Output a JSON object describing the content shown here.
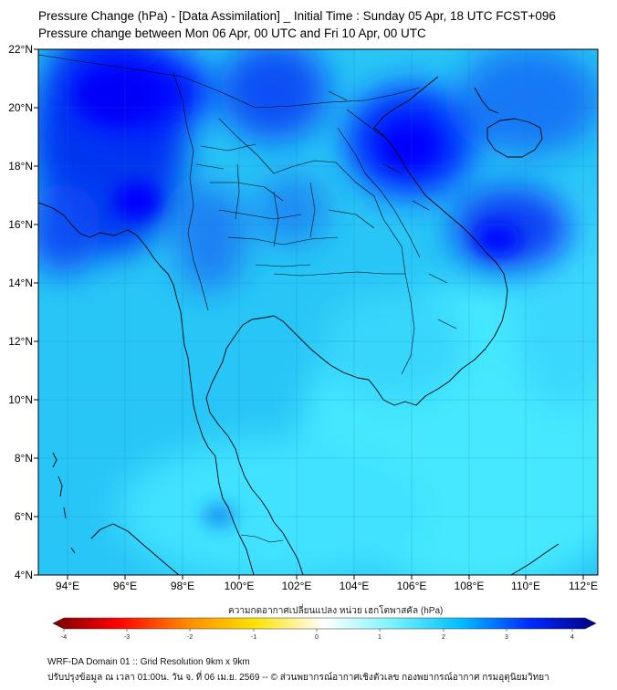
{
  "header": {
    "title_line1": "Pressure Change (hPa) - [Data Assimilation] _ Initial Time : Sunday 05 Apr, 18 UTC FCST+096",
    "title_line2": "Pressure change between Mon 06 Apr, 00 UTC and Fri 10 Apr, 00 UTC"
  },
  "map": {
    "lon_range": [
      93,
      112.5
    ],
    "lat_range": [
      4,
      22
    ],
    "lon_ticks": [
      "94°E",
      "96°E",
      "98°E",
      "100°E",
      "102°E",
      "104°E",
      "106°E",
      "108°E",
      "110°E",
      "112°E"
    ],
    "lat_ticks": [
      "4°N",
      "6°N",
      "8°N",
      "10°N",
      "12°N",
      "14°N",
      "16°N",
      "18°N",
      "20°N",
      "22°N"
    ],
    "grid": true,
    "field": "pressure change (hPa)",
    "colors": {
      "background_field": "#22c8f5",
      "light_field": "#3ee6ff",
      "dark_field": "#0000ff",
      "coast_lines": "#000000"
    }
  },
  "colorbar": {
    "caption": "ความกดอากาศเปลี่ยนแปลง หน่วย เฮกโตพาสคัล (hPa)",
    "tick_labels": [
      "-4",
      "-3",
      "-2",
      "-1",
      "0",
      "1",
      "2",
      "3",
      "4"
    ],
    "range": [
      -4,
      4
    ],
    "colors": [
      "#7a0000",
      "#ff0000",
      "#ffa500",
      "#ffe000",
      "#ffffff",
      "#7fffff",
      "#00bfff",
      "#0030ff",
      "#000080"
    ]
  },
  "footer": {
    "line1": "WRF-DA Domain 01 :: Grid Resolution 9km x 9km",
    "line2": "ปรับปรุงข้อมูล ณ เวลา 01:00น. วัน จ. ที่ 06 เม.ย. 2569 -- © ส่วนพยากรณ์อากาศเชิงตัวเลข กองพยากรณ์อากาศ กรมอุตุนิยมวิทยา"
  }
}
